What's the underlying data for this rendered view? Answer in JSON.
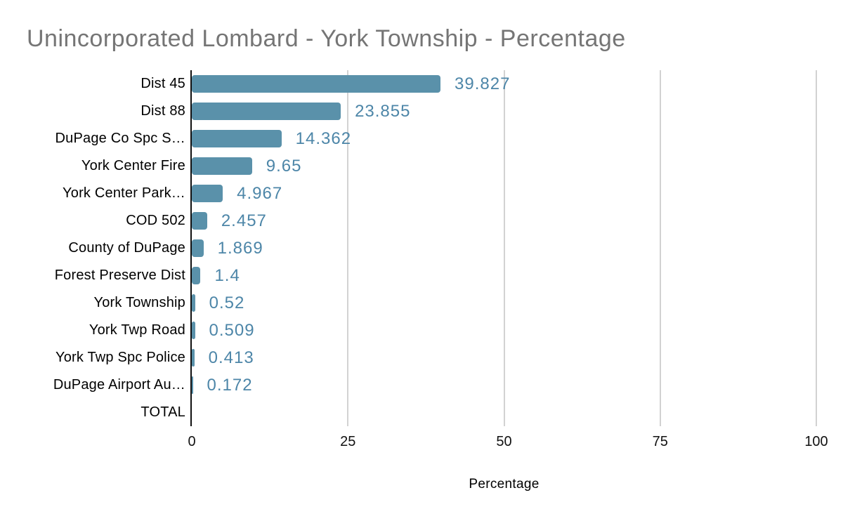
{
  "title": "Unincorporated Lombard - York Township - Percentage",
  "chart_data": {
    "type": "bar",
    "orientation": "horizontal",
    "title": "Unincorporated Lombard - York Township - Percentage",
    "xlabel": "Percentage",
    "ylabel": "",
    "xlim": [
      0,
      100
    ],
    "x_ticks": [
      0,
      25,
      50,
      75,
      100
    ],
    "grid": "vertical-only",
    "legend": "none",
    "categories": [
      "Dist 45",
      "Dist 88",
      "DuPage Co Spc S…",
      "York Center Fire",
      "York Center Park…",
      "COD 502",
      "County of DuPage",
      "Forest Preserve Dist",
      "York Township",
      "York Twp Road",
      "York Twp Spc Police",
      "DuPage Airport Au…",
      "TOTAL"
    ],
    "values": [
      39.827,
      23.855,
      14.362,
      9.65,
      4.967,
      2.457,
      1.869,
      1.4,
      0.52,
      0.509,
      0.413,
      0.172,
      null
    ],
    "value_labels": [
      "39.827",
      "23.855",
      "14.362",
      "9.65",
      "4.967",
      "2.457",
      "1.869",
      "1.4",
      "0.52",
      "0.509",
      "0.413",
      "0.172",
      ""
    ],
    "colors": {
      "bar": "#5a91aa",
      "value_label": "#4d86a8",
      "title": "#757575",
      "gridline": "#d2d2d2",
      "axis_line": "#111111",
      "category_label": "#000000"
    }
  }
}
